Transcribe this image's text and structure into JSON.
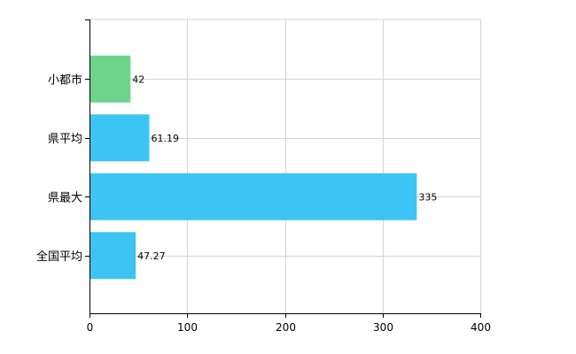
{
  "chart_data": {
    "type": "bar",
    "orientation": "horizontal",
    "categories": [
      "小都市",
      "県平均",
      "県最大",
      "全国平均"
    ],
    "values": [
      42,
      61.19,
      335,
      47.27
    ],
    "value_labels": [
      "42",
      "61.19",
      "335",
      "47.27"
    ],
    "bar_colors": [
      "#6dd48c",
      "#3cc4f4",
      "#3cc4f4",
      "#3cc4f4"
    ],
    "title": "",
    "xlabel": "",
    "ylabel": "",
    "xlim": [
      0,
      400
    ],
    "x_ticks": [
      0,
      100,
      200,
      300,
      400
    ],
    "x_tick_labels": [
      "0",
      "100",
      "200",
      "300",
      "400"
    ],
    "grid": true,
    "legend": "none"
  },
  "colors": {
    "highlight": "#6dd48c",
    "default_bar": "#3cc4f4",
    "grid": "#d4d4d4",
    "axis": "#000000"
  }
}
